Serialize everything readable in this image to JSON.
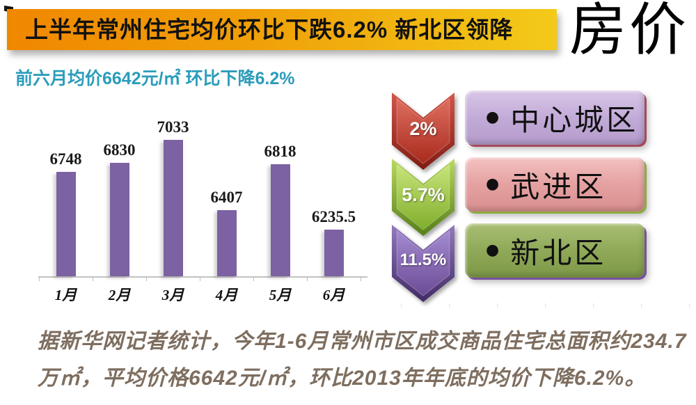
{
  "header": {
    "banner_title": "上半年常州住宅均价环比下跌6.2% 新北区领降",
    "page_mark": "房价",
    "subtitle": "前六月均价6642元/㎡ 环比下降6.2%"
  },
  "chart_data": {
    "type": "bar",
    "title": "",
    "xlabel": "",
    "ylabel": "",
    "categories": [
      "1月",
      "2月",
      "3月",
      "4月",
      "5月",
      "6月"
    ],
    "values": [
      6748,
      6830,
      7033,
      6407,
      6818,
      6235.5
    ],
    "value_labels": [
      "6748",
      "6830",
      "7033",
      "6407",
      "6818",
      "6235.5"
    ],
    "ylim": [
      5818,
      7100
    ],
    "grid": false,
    "legend": "none",
    "bar_color": "#7C61A3"
  },
  "decline_list": {
    "items": [
      {
        "percent": "2%",
        "district": "中心城区",
        "bullet": "●",
        "arrow_colors": {
          "edge_top": "#D4564A",
          "edge_bottom": "#7E1B12",
          "face_top": "#DE6E5F",
          "face_bottom": "#A82A1D"
        },
        "box_colors": {
          "top": "#D8C6E6",
          "base": "#C3ABD8",
          "bottom": "#B49BCC",
          "accent": "#A34A5C"
        }
      },
      {
        "percent": "5.7%",
        "district": "武进区",
        "bullet": "●",
        "arrow_colors": {
          "edge_top": "#B8D95E",
          "edge_bottom": "#567F17",
          "face_top": "#C8E47A",
          "face_bottom": "#7FAE2B"
        },
        "box_colors": {
          "top": "#F4C2C2",
          "base": "#E5A1A1",
          "bottom": "#D98F8F",
          "accent": "#8CAB40"
        }
      },
      {
        "percent": "11.5%",
        "district": "新北区",
        "bullet": "●",
        "arrow_colors": {
          "edge_top": "#9379BE",
          "edge_bottom": "#412B66",
          "face_top": "#A38AD0",
          "face_bottom": "#6B4C96"
        },
        "box_colors": {
          "top": "#A9BF74",
          "base": "#8FA958",
          "bottom": "#7E9849",
          "accent": "#77529E"
        }
      }
    ]
  },
  "footer": {
    "line1": "据新华网记者统计，今年1-6月常州市区成交商品住宅总面积约234.7",
    "line2": "万㎡，平均价格6642元/㎡，环比2013年年底的均价下降6.2%。"
  },
  "colors": {
    "banner_gradient_left": "#F08700",
    "banner_gradient_right": "#F3CA19",
    "subtitle_text": "#2B9CBA",
    "bar_fill": "#7C61A3",
    "axis_line": "#C2C2C2",
    "footer_text": "#7E6E5F"
  }
}
